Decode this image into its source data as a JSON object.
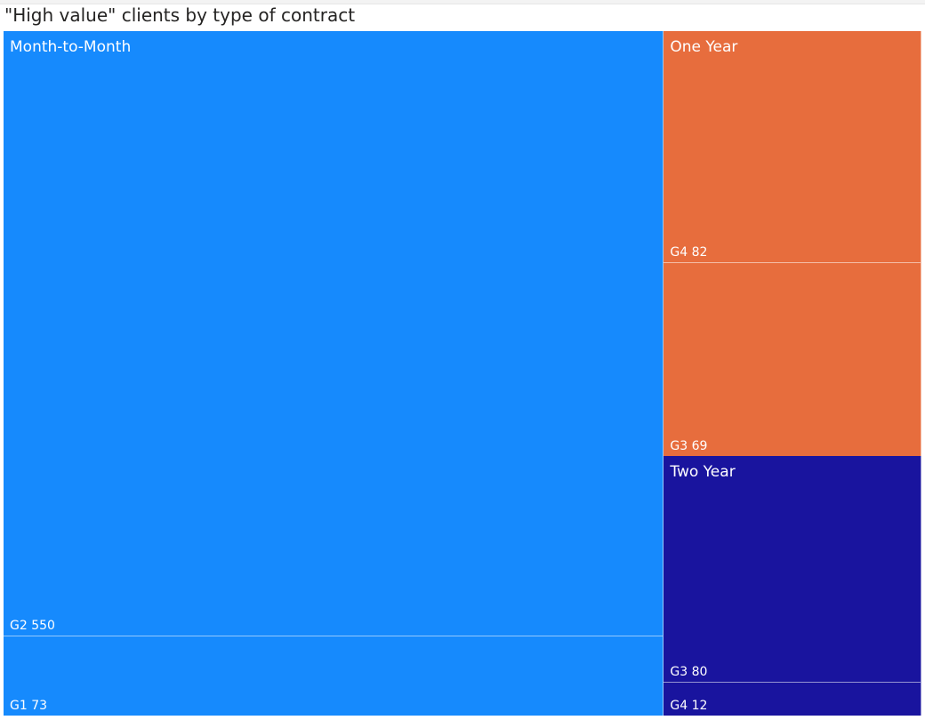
{
  "chart_data": {
    "type": "treemap",
    "title": "\"High value\" clients by type of contract",
    "colors": {
      "Month-to-Month": "#168afd",
      "One Year": "#e76d3d",
      "Two Year": "#19149e"
    },
    "groups": [
      {
        "name": "Month-to-Month",
        "children": [
          {
            "label": "G2 550",
            "category": "G2",
            "value": 550
          },
          {
            "label": "G1 73",
            "category": "G1",
            "value": 73
          }
        ]
      },
      {
        "name": "One Year",
        "children": [
          {
            "label": "G4 82",
            "category": "G4",
            "value": 82
          },
          {
            "label": "G3 69",
            "category": "G3",
            "value": 69
          }
        ]
      },
      {
        "name": "Two Year",
        "children": [
          {
            "label": "G3 80",
            "category": "G3",
            "value": 80
          },
          {
            "label": "G4 12",
            "category": "G4",
            "value": 12
          }
        ]
      }
    ]
  }
}
